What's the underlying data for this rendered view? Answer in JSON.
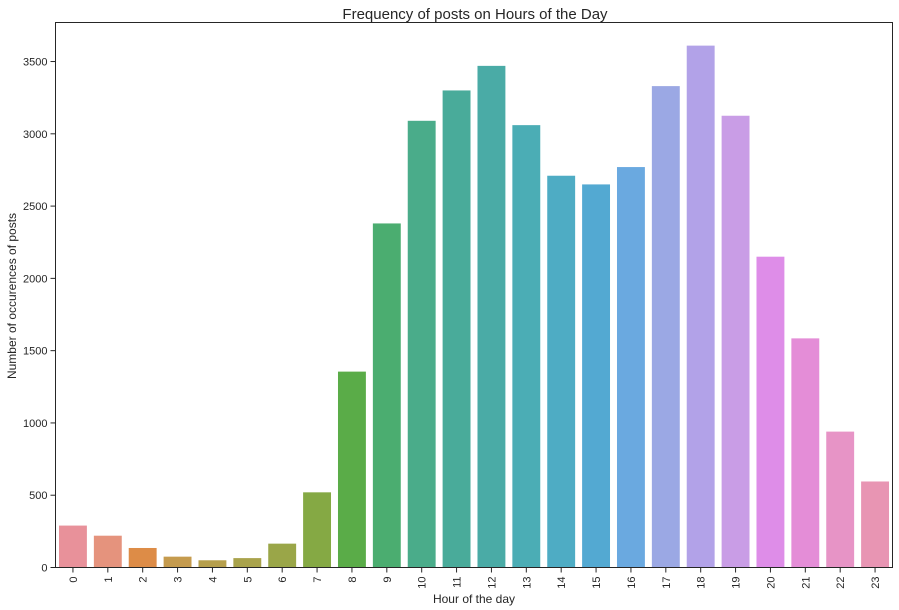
{
  "chart_data": {
    "type": "bar",
    "title": "Frequency of posts on Hours of the Day",
    "xlabel": "Hour of the day",
    "ylabel": "Number of occurences of posts",
    "categories": [
      "0",
      "1",
      "2",
      "3",
      "4",
      "5",
      "6",
      "7",
      "8",
      "9",
      "10",
      "11",
      "12",
      "13",
      "14",
      "15",
      "16",
      "17",
      "18",
      "19",
      "20",
      "21",
      "22",
      "23"
    ],
    "values": [
      290,
      220,
      135,
      75,
      50,
      65,
      165,
      520,
      1355,
      2380,
      3090,
      3300,
      3470,
      3060,
      2710,
      2650,
      2770,
      3330,
      3610,
      3125,
      2150,
      1585,
      940,
      595
    ],
    "ylim": [
      0,
      3770
    ],
    "yticks": [
      0,
      500,
      1000,
      1500,
      2000,
      2500,
      3000,
      3500
    ],
    "grid": false,
    "legend": "none",
    "colors": [
      "#e8919a",
      "#e5937d",
      "#dd8c47",
      "#c59b4e",
      "#b69f4c",
      "#a9a34c",
      "#9aa648",
      "#85a944",
      "#5aac48",
      "#4bad70",
      "#4aac8a",
      "#49ab9a",
      "#4aaba6",
      "#4badb5",
      "#4eacc4",
      "#53a9d2",
      "#6aa9e0",
      "#9ba8e4",
      "#b2a2e8",
      "#c99de6",
      "#de8de8",
      "#e48dd7",
      "#e794c6",
      "#e895b3"
    ]
  }
}
